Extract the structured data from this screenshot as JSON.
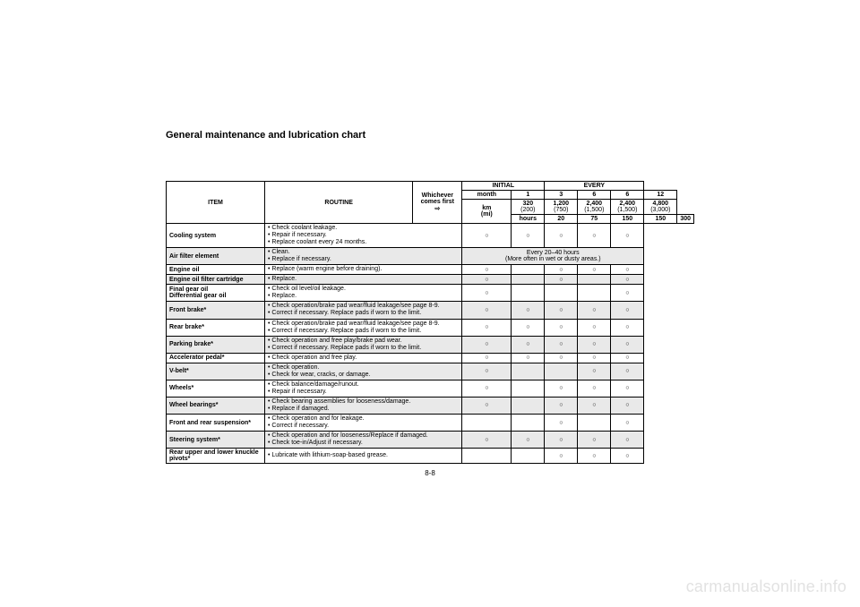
{
  "title": "General maintenance and lubrication chart",
  "header": {
    "item": "ITEM",
    "routine": "ROUTINE",
    "whichever_l1": "Whichever",
    "whichever_l2": "comes first",
    "whichever_l3": "⇨",
    "initial": "INITIAL",
    "every": "EVERY",
    "month": "month",
    "km": "km",
    "mi": "(mi)",
    "hours": "hours",
    "m1": "1",
    "m3": "3",
    "m6": "6",
    "m6b": "6",
    "m12": "12",
    "k1": "320",
    "k2": "1,200",
    "k3": "2,400",
    "k4": "2,400",
    "k5": "4,800",
    "mi1": "(200)",
    "mi2": "(750)",
    "mi3": "(1,500)",
    "mi4": "(1,500)",
    "mi5": "(3,000)",
    "h1": "20",
    "h2": "75",
    "h3": "150",
    "h4": "150",
    "h5": "300"
  },
  "rows": {
    "r1": {
      "item": "Cooling system",
      "l1": "Check coolant leakage.",
      "l2": "Repair if necessary.",
      "l3": "Replace coolant every 24 months."
    },
    "r2": {
      "item": "Air filter element",
      "l1": "Clean.",
      "l2": "Replace if necessary.",
      "note_a": "Every 20–40 hours",
      "note_b": "(More often in wet or dusty areas.)"
    },
    "r3": {
      "item": "Engine oil",
      "l1": "Replace (warm engine before draining)."
    },
    "r4": {
      "item": "Engine oil filter cartridge",
      "l1": "Replace."
    },
    "r5": {
      "item_a": "Final gear oil",
      "item_b": "Differential gear oil",
      "l1": "Check oil level/oil leakage.",
      "l2": "Replace."
    },
    "r6": {
      "item": "Front brake*",
      "l1": "Check operation/brake pad wear/fluid leakage/see page 8-9.",
      "l2": "Correct if necessary. Replace pads if worn to the limit."
    },
    "r7": {
      "item": "Rear brake*",
      "l1": "Check operation/brake pad wear/fluid leakage/see page 8-9.",
      "l2": "Correct if necessary. Replace pads if worn to the limit."
    },
    "r8": {
      "item": "Parking brake*",
      "l1": "Check operation and free play/brake pad wear.",
      "l2": "Correct if necessary. Replace pads if worn to the limit."
    },
    "r9": {
      "item": "Accelerator pedal*",
      "l1": "Check operation and free play."
    },
    "r10": {
      "item": "V-belt*",
      "l1": "Check operation.",
      "l2": "Check for wear, cracks, or damage."
    },
    "r11": {
      "item": "Wheels*",
      "l1": "Check balance/damage/runout.",
      "l2": "Repair if necessary."
    },
    "r12": {
      "item": "Wheel bearings*",
      "l1": "Check bearing assemblies for looseness/damage.",
      "l2": "Replace if damaged."
    },
    "r13": {
      "item": "Front and rear suspension*",
      "l1": "Check operation and for leakage.",
      "l2": "Correct if necessary."
    },
    "r14": {
      "item": "Steering system*",
      "l1": "Check operation and for looseness/Replace if damaged.",
      "l2": "Check toe-in/Adjust if necessary."
    },
    "r15": {
      "item": "Rear upper and lower knuckle pivots*",
      "l1": "Lubricate with lithium-soap-based grease."
    }
  },
  "mark": "○",
  "pagefoot": "8-8",
  "watermark": "carmanualsonline.info"
}
